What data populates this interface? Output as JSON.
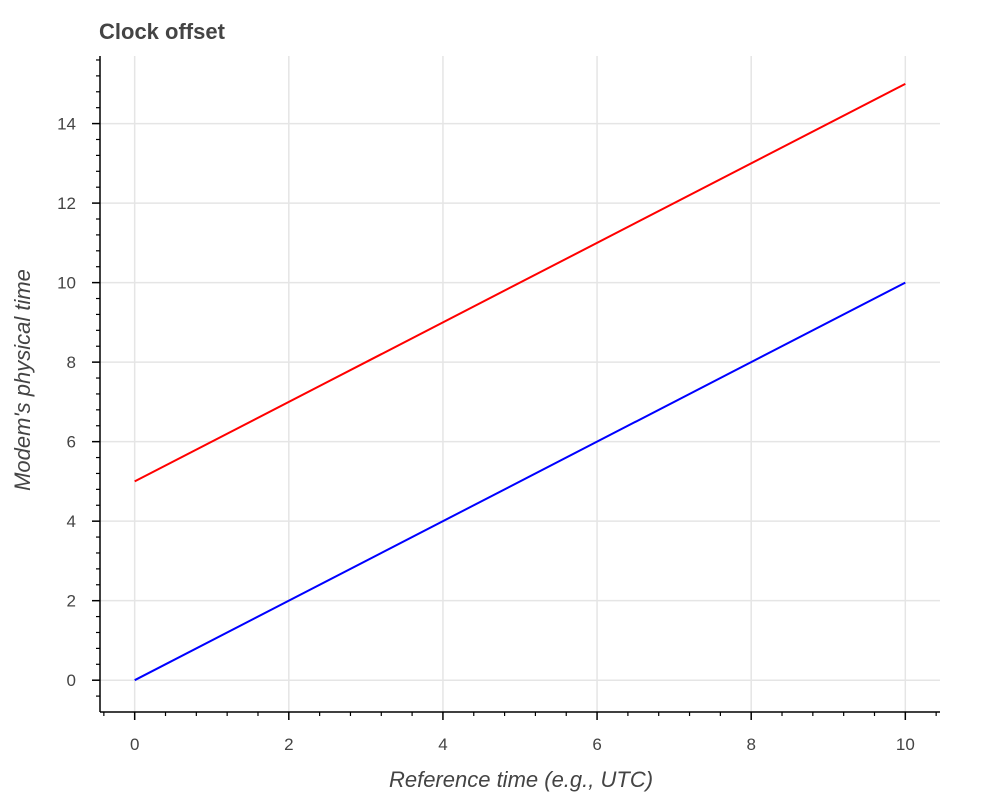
{
  "chart_data": {
    "type": "line",
    "title": "Clock offset",
    "xlabel": "Reference time (e.g., UTC)",
    "ylabel": "Modem's physical time",
    "xlim": [
      -0.45,
      10.45
    ],
    "ylim": [
      -0.8,
      15.7
    ],
    "x_ticks": [
      0,
      2,
      4,
      6,
      8,
      10
    ],
    "y_ticks": [
      0,
      2,
      4,
      6,
      8,
      10,
      12,
      14
    ],
    "grid": true,
    "series": [
      {
        "color": "#ff0000",
        "x": [
          0,
          10
        ],
        "y": [
          5,
          15
        ]
      },
      {
        "color": "#0000ff",
        "x": [
          0,
          10
        ],
        "y": [
          0,
          10
        ]
      }
    ]
  }
}
